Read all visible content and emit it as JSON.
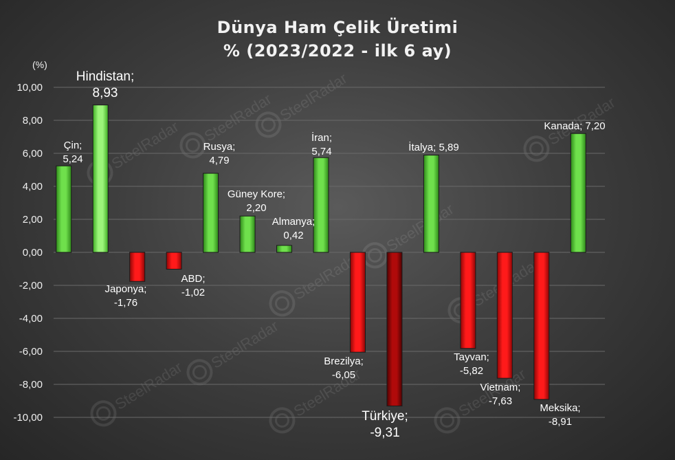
{
  "chart_data": {
    "type": "bar",
    "title": "Dünya Ham Çelik Üretimi",
    "subtitle": "% (2023/2022 - ilk 6 ay)",
    "ylabel": "(%)",
    "ylim": [
      -10,
      10
    ],
    "yticks": [
      "10,00",
      "8,00",
      "6,00",
      "4,00",
      "2,00",
      "0,00",
      "-2,00",
      "-4,00",
      "-6,00",
      "-8,00",
      "-10,00"
    ],
    "grid": true,
    "watermark": "SteelRadar",
    "colors": {
      "positive": "#5bd43a",
      "negative": "#e81010",
      "highlight_negative": "#a50808",
      "highlight_positive": "#7ef05a"
    },
    "categories": [
      "Çin",
      "Hindistan",
      "Japonya",
      "ABD",
      "Rusya",
      "Güney Kore",
      "Almanya",
      "İran",
      "Brezilya",
      "Türkiye",
      "İtalya",
      "Tayvan",
      "Vietnam",
      "Meksika",
      "Kanada"
    ],
    "values": [
      5.24,
      8.93,
      -1.76,
      -1.02,
      4.79,
      2.2,
      0.42,
      5.74,
      -6.05,
      -9.31,
      5.89,
      -5.82,
      -7.63,
      -8.91,
      7.2
    ],
    "value_labels": [
      "5,24",
      "8,93",
      "-1,76",
      "-1,02",
      "4,79",
      "2,20",
      "0,42",
      "5,74",
      "-6,05",
      "-9,31",
      "5,89",
      "-5,82",
      "-7,63",
      "-8,91",
      "7,20"
    ],
    "data_labels": [
      [
        "Çin;",
        "5,24"
      ],
      [
        "Hindistan;",
        "8,93"
      ],
      [
        "Japonya;",
        "-1,76"
      ],
      [
        "ABD;",
        "-1,02"
      ],
      [
        "Rusya;",
        "4,79"
      ],
      [
        "Güney Kore;",
        "2,20"
      ],
      [
        "Almanya;",
        "0,42"
      ],
      [
        "İran;",
        "5,74"
      ],
      [
        "Brezilya;",
        "-6,05"
      ],
      [
        "Türkiye;",
        "-9,31"
      ],
      [
        "İtalya; 5,89"
      ],
      [
        "Tayvan;",
        "-5,82"
      ],
      [
        "Vietnam;",
        "-7,63"
      ],
      [
        "Meksika;",
        "-8,91"
      ],
      [
        "Kanada; 7,20"
      ]
    ]
  }
}
